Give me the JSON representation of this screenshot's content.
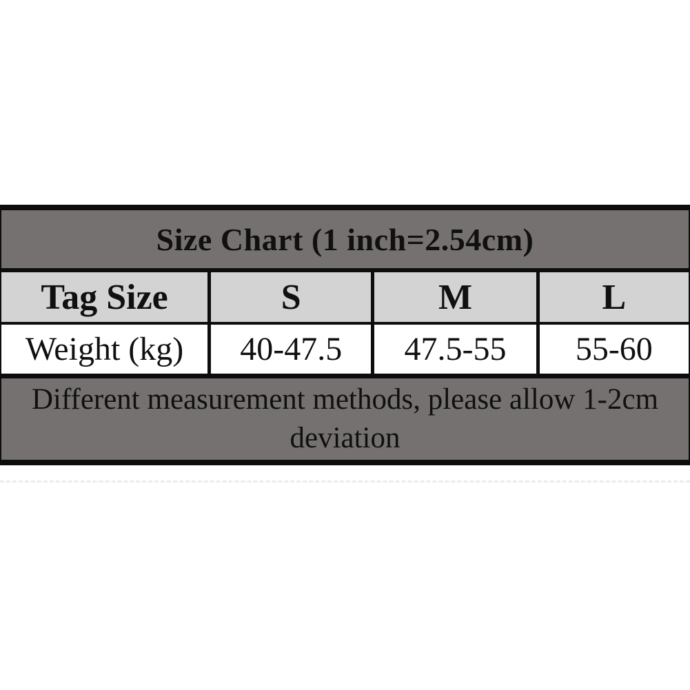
{
  "chart_data": {
    "type": "table",
    "title": "Size Chart (1 inch=2.54cm)",
    "columns": [
      "Tag Size",
      "S",
      "M",
      "L"
    ],
    "rows": [
      [
        "Weight (kg)",
        "40-47.5",
        "47.5-55",
        "55-60"
      ]
    ],
    "footnote": "Different measurement methods, please allow 1-2cm deviation"
  },
  "colors": {
    "title_band_gray": "#767171",
    "header_band_gray": "#d3d3d3",
    "note_band_gray": "#767171",
    "border_black": "#0d0d0d",
    "text_black": "#101010",
    "page_background": "#ffffff"
  }
}
